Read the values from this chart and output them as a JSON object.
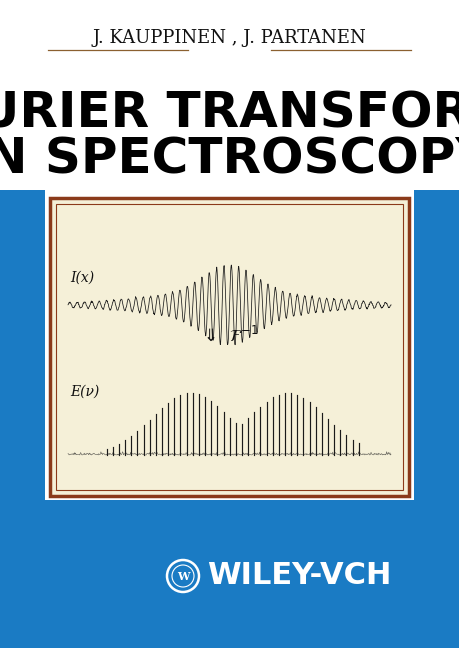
{
  "background_color": "#ffffff",
  "blue_band_color": "#1a7bc4",
  "cream_box_color": "#f5f0d8",
  "brown_border_color": "#8b3a1a",
  "author_text": "J. KAUPPINEN , J. PARTANEN",
  "title_line1": "FOURIER TRANSFORMS",
  "title_line2": "IN SPECTROSCOPY",
  "publisher_text": "WILEY-VCH",
  "author_fontsize": 13,
  "title_fontsize": 36,
  "publisher_fontsize": 22,
  "label_ix": "I(x)",
  "label_ev": "E(ν)",
  "waveform_color": "#1a1a1a",
  "spectrum_color": "#1a1a1a",
  "line_color": "#8b6030",
  "white": "#ffffff"
}
